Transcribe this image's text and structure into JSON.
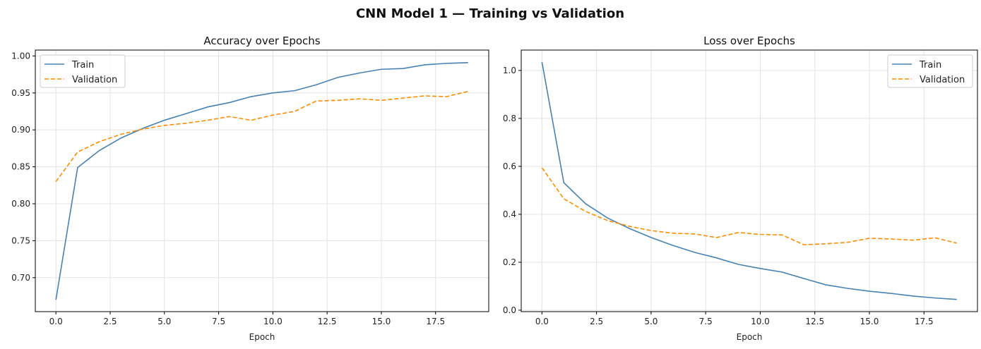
{
  "suptitle": "CNN Model 1 — Training vs Validation",
  "colors": {
    "train": "#4682b4",
    "validation": "#ff8c00"
  },
  "chart_data": [
    {
      "type": "line",
      "title": "Accuracy over Epochs",
      "xlabel": "Epoch",
      "ylabel": "",
      "xlim": [
        -0.95,
        19.95
      ],
      "ylim": [
        0.654,
        1.008
      ],
      "xticks": [
        0,
        2.5,
        5,
        7.5,
        10,
        12.5,
        15,
        17.5
      ],
      "xtick_labels": [
        "0.0",
        "2.5",
        "5.0",
        "7.5",
        "10.0",
        "12.5",
        "15.0",
        "17.5"
      ],
      "yticks": [
        0.7,
        0.75,
        0.8,
        0.85,
        0.9,
        0.95,
        1.0
      ],
      "ytick_labels": [
        "0.70",
        "0.75",
        "0.80",
        "0.85",
        "0.90",
        "0.95",
        "1.00"
      ],
      "grid": true,
      "legend_position": "top-left",
      "x": [
        0,
        1,
        2,
        3,
        4,
        5,
        6,
        7,
        8,
        9,
        10,
        11,
        12,
        13,
        14,
        15,
        16,
        17,
        18,
        19
      ],
      "series": [
        {
          "name": "Train",
          "style": "solid",
          "values": [
            0.67,
            0.849,
            0.872,
            0.889,
            0.902,
            0.913,
            0.922,
            0.931,
            0.937,
            0.945,
            0.95,
            0.953,
            0.961,
            0.971,
            0.977,
            0.982,
            0.983,
            0.988,
            0.99,
            0.991
          ]
        },
        {
          "name": "Validation",
          "style": "dashed",
          "values": [
            0.83,
            0.87,
            0.884,
            0.894,
            0.901,
            0.906,
            0.909,
            0.913,
            0.918,
            0.913,
            0.92,
            0.925,
            0.939,
            0.94,
            0.942,
            0.94,
            0.943,
            0.946,
            0.945,
            0.952
          ]
        }
      ]
    },
    {
      "type": "line",
      "title": "Loss over Epochs",
      "xlabel": "Epoch",
      "ylabel": "",
      "xlim": [
        -0.95,
        19.95
      ],
      "ylim": [
        -0.006,
        1.085
      ],
      "xticks": [
        0,
        2.5,
        5,
        7.5,
        10,
        12.5,
        15,
        17.5
      ],
      "xtick_labels": [
        "0.0",
        "2.5",
        "5.0",
        "7.5",
        "10.0",
        "12.5",
        "15.0",
        "17.5"
      ],
      "yticks": [
        0,
        0.2,
        0.4,
        0.6,
        0.8,
        1.0
      ],
      "ytick_labels": [
        "0.0",
        "0.2",
        "0.4",
        "0.6",
        "0.8",
        "1.0"
      ],
      "grid": true,
      "legend_position": "top-right",
      "x": [
        0,
        1,
        2,
        3,
        4,
        5,
        6,
        7,
        8,
        9,
        10,
        11,
        12,
        13,
        14,
        15,
        16,
        17,
        18,
        19
      ],
      "series": [
        {
          "name": "Train",
          "style": "solid",
          "values": [
            1.035,
            0.532,
            0.444,
            0.385,
            0.341,
            0.303,
            0.27,
            0.241,
            0.218,
            0.191,
            0.174,
            0.159,
            0.132,
            0.106,
            0.091,
            0.079,
            0.07,
            0.059,
            0.051,
            0.045
          ]
        },
        {
          "name": "Validation",
          "style": "dashed",
          "values": [
            0.594,
            0.465,
            0.412,
            0.374,
            0.35,
            0.332,
            0.321,
            0.318,
            0.303,
            0.324,
            0.316,
            0.314,
            0.273,
            0.277,
            0.283,
            0.3,
            0.297,
            0.292,
            0.302,
            0.28
          ]
        }
      ]
    }
  ]
}
